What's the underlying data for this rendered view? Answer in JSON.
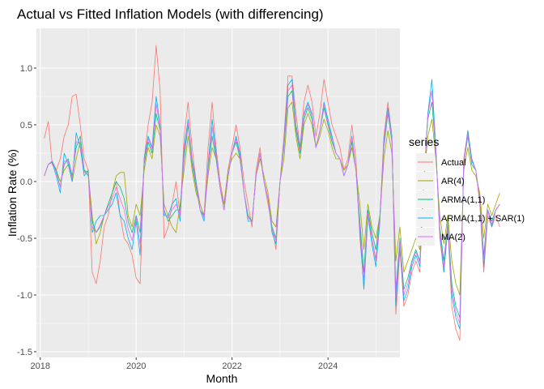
{
  "chart_data": {
    "type": "line",
    "title": "Actual vs Fitted Inflation Models (with differencing)",
    "xlabel": "Month",
    "ylabel": "Inflation Rate (%)",
    "xlim": [
      2017.92,
      2025.5
    ],
    "ylim": [
      -1.55,
      1.35
    ],
    "x_ticks": [
      2018,
      2020,
      2022,
      2024
    ],
    "y_ticks": [
      -1.5,
      -1.0,
      -0.5,
      0.0,
      0.5,
      1.0
    ],
    "y_tick_labels": [
      "-1.5",
      "-1.0",
      "-0.5",
      "0.0",
      "0.5",
      "1.0"
    ],
    "legend_title": "series",
    "legend_position": "right",
    "grid": true,
    "series": [
      {
        "name": "Actual",
        "color": "#F8766D",
        "x_start": 2018.083,
        "x_step": 0.08333,
        "values": [
          0.38,
          0.53,
          0.15,
          0.1,
          0.2,
          0.4,
          0.5,
          0.75,
          0.77,
          0.5,
          0.2,
          0.1,
          -0.8,
          -0.9,
          -0.7,
          -0.4,
          -0.3,
          -0.1,
          0.0,
          -0.3,
          -0.5,
          -0.55,
          -0.65,
          -0.85,
          -0.9,
          0.2,
          0.5,
          0.7,
          1.2,
          0.8,
          -0.5,
          -0.4,
          -0.2,
          0.0,
          -0.3,
          0.4,
          0.7,
          0.3,
          0.0,
          -0.2,
          -0.3,
          0.3,
          0.7,
          0.3,
          0.0,
          -0.2,
          0.1,
          0.3,
          0.5,
          0.3,
          0.0,
          -0.2,
          -0.4,
          0.1,
          0.3,
          0.0,
          -0.2,
          -0.4,
          -0.6,
          0.0,
          0.4,
          0.93,
          0.93,
          0.6,
          0.3,
          0.7,
          0.85,
          0.7,
          0.4,
          0.6,
          0.9,
          0.7,
          0.5,
          0.4,
          0.3,
          0.1,
          0.2,
          0.5,
          0.2,
          -0.5,
          -0.9,
          -0.3,
          -0.5,
          -0.7,
          -0.3,
          0.4,
          0.7,
          0.4,
          -1.17,
          -0.6,
          -1.1,
          -1.0,
          -0.8,
          -0.7,
          -0.8,
          0.0,
          0.6,
          0.8,
          0.3,
          -0.5,
          -0.8,
          -0.4,
          -1.1,
          -1.3,
          -1.4,
          0.2,
          0.45,
          0.2,
          0.1,
          -0.2,
          -0.8,
          -0.3,
          -0.4,
          -0.3,
          -0.4
        ]
      },
      {
        "name": "AR(4)",
        "color": "#A3A500",
        "x_start": 2018.083,
        "x_step": 0.08333,
        "values": [
          0.05,
          0.15,
          0.18,
          0.1,
          0.0,
          0.1,
          0.15,
          0.0,
          0.2,
          0.35,
          0.1,
          0.08,
          -0.3,
          -0.55,
          -0.45,
          -0.3,
          -0.2,
          -0.1,
          0.05,
          0.08,
          0.08,
          -0.3,
          -0.4,
          -0.2,
          -0.3,
          0.1,
          0.3,
          0.2,
          0.5,
          0.4,
          -0.2,
          -0.3,
          -0.4,
          -0.45,
          -0.2,
          0.1,
          0.4,
          0.1,
          -0.1,
          -0.2,
          -0.3,
          0.05,
          0.3,
          0.2,
          -0.05,
          -0.2,
          0.1,
          0.2,
          0.25,
          0.2,
          -0.1,
          -0.3,
          -0.35,
          0.05,
          0.2,
          0.05,
          -0.1,
          -0.35,
          -0.4,
          0.0,
          0.2,
          0.65,
          0.7,
          0.4,
          0.2,
          0.5,
          0.6,
          0.5,
          0.3,
          0.4,
          0.55,
          0.45,
          0.3,
          0.2,
          0.2,
          0.1,
          0.15,
          0.3,
          0.1,
          -0.2,
          -0.6,
          -0.2,
          -0.4,
          -0.5,
          -0.3,
          0.2,
          0.45,
          0.25,
          -0.7,
          -0.4,
          -0.8,
          -0.7,
          -0.6,
          -0.5,
          -0.6,
          0.0,
          0.4,
          0.55,
          0.2,
          -0.3,
          -0.55,
          -0.3,
          -0.7,
          -0.9,
          -1.0,
          0.1,
          0.3,
          0.1,
          0.05,
          -0.1,
          -0.5,
          -0.2,
          -0.3,
          -0.2,
          -0.1
        ]
      },
      {
        "name": "ARMA(1,1)",
        "color": "#00BF7D",
        "x_start": 2018.083,
        "x_step": 0.08333,
        "values": [
          0.05,
          0.15,
          0.18,
          0.1,
          -0.05,
          0.15,
          0.2,
          0.05,
          0.3,
          0.4,
          0.1,
          0.05,
          -0.35,
          -0.45,
          -0.4,
          -0.3,
          -0.2,
          -0.1,
          0.0,
          -0.05,
          -0.15,
          -0.35,
          -0.45,
          -0.3,
          -0.45,
          0.15,
          0.35,
          0.25,
          0.6,
          0.45,
          -0.25,
          -0.35,
          -0.3,
          -0.25,
          -0.25,
          0.2,
          0.5,
          0.15,
          -0.05,
          -0.25,
          -0.3,
          0.1,
          0.4,
          0.2,
          -0.05,
          -0.25,
          0.05,
          0.25,
          0.35,
          0.2,
          -0.1,
          -0.3,
          -0.35,
          0.05,
          0.25,
          0.0,
          -0.15,
          -0.4,
          -0.5,
          0.0,
          0.3,
          0.75,
          0.8,
          0.45,
          0.25,
          0.55,
          0.65,
          0.55,
          0.3,
          0.45,
          0.65,
          0.5,
          0.35,
          0.25,
          0.2,
          0.05,
          0.15,
          0.35,
          0.1,
          -0.35,
          -0.8,
          -0.25,
          -0.45,
          -0.6,
          -0.3,
          0.3,
          0.6,
          0.35,
          -0.95,
          -0.5,
          -0.95,
          -0.85,
          -0.7,
          -0.6,
          -0.7,
          0.0,
          0.55,
          0.7,
          0.25,
          -0.4,
          -0.7,
          -0.35,
          -0.9,
          -1.1,
          -1.2,
          0.15,
          0.4,
          0.15,
          0.1,
          -0.15,
          -0.65,
          -0.25,
          -0.35,
          -0.25,
          -0.2
        ]
      },
      {
        "name": "ARMA(1,1) + SAR(1)",
        "color": "#00B0F6",
        "x_start": 2018.083,
        "x_step": 0.08333,
        "values": [
          0.05,
          0.15,
          0.17,
          0.05,
          -0.1,
          0.25,
          0.15,
          0.0,
          0.43,
          0.3,
          0.05,
          0.1,
          -0.45,
          -0.35,
          -0.3,
          -0.3,
          -0.25,
          -0.2,
          -0.1,
          -0.3,
          -0.35,
          -0.5,
          -0.6,
          -0.35,
          -0.65,
          0.2,
          0.4,
          0.3,
          0.75,
          0.5,
          -0.3,
          -0.3,
          -0.2,
          -0.15,
          -0.35,
          0.3,
          0.55,
          0.2,
          0.0,
          -0.25,
          -0.35,
          0.15,
          0.55,
          0.25,
          -0.05,
          -0.25,
          0.05,
          0.25,
          0.4,
          0.25,
          -0.1,
          -0.35,
          -0.35,
          0.05,
          0.25,
          0.0,
          -0.15,
          -0.45,
          -0.55,
          0.0,
          0.35,
          0.85,
          0.9,
          0.5,
          0.3,
          0.6,
          0.7,
          0.6,
          0.3,
          0.45,
          0.7,
          0.55,
          0.4,
          0.25,
          0.2,
          0.05,
          0.15,
          0.4,
          0.1,
          -0.45,
          -0.95,
          -0.3,
          -0.55,
          -0.75,
          -0.35,
          0.35,
          0.65,
          0.4,
          -1.1,
          -0.55,
          -1.05,
          -0.95,
          -0.75,
          -0.65,
          -0.75,
          0.0,
          0.6,
          0.9,
          0.3,
          -0.45,
          -0.8,
          -0.4,
          -1.0,
          -1.2,
          -1.3,
          0.15,
          0.45,
          0.2,
          0.1,
          -0.15,
          -0.75,
          -0.25,
          -0.4,
          -0.25,
          -0.2
        ]
      },
      {
        "name": "MA(2)",
        "color": "#E76BF3",
        "x_start": 2018.083,
        "x_step": 0.08333,
        "values": [
          0.05,
          0.15,
          0.18,
          0.08,
          -0.05,
          0.18,
          0.18,
          0.03,
          0.35,
          0.35,
          0.08,
          0.07,
          -0.4,
          -0.45,
          -0.38,
          -0.3,
          -0.22,
          -0.15,
          -0.05,
          -0.15,
          -0.25,
          -0.42,
          -0.52,
          -0.32,
          -0.55,
          0.18,
          0.38,
          0.28,
          0.68,
          0.48,
          -0.28,
          -0.32,
          -0.25,
          -0.2,
          -0.3,
          0.25,
          0.52,
          0.18,
          -0.02,
          -0.25,
          -0.32,
          0.12,
          0.48,
          0.22,
          -0.05,
          -0.25,
          0.05,
          0.25,
          0.38,
          0.22,
          -0.1,
          -0.32,
          -0.35,
          0.05,
          0.25,
          0.0,
          -0.15,
          -0.42,
          -0.52,
          0.0,
          0.32,
          0.8,
          0.85,
          0.48,
          0.28,
          0.58,
          0.68,
          0.58,
          0.3,
          0.45,
          0.68,
          0.52,
          0.38,
          0.25,
          0.2,
          0.05,
          0.15,
          0.38,
          0.1,
          -0.4,
          -0.88,
          -0.28,
          -0.5,
          -0.68,
          -0.32,
          0.32,
          0.62,
          0.38,
          -1.02,
          -0.52,
          -1.0,
          -0.9,
          -0.72,
          -0.62,
          -0.72,
          0.0,
          0.58,
          0.8,
          0.28,
          -0.42,
          -0.75,
          -0.38,
          -0.95,
          -1.15,
          -1.25,
          0.15,
          0.42,
          0.18,
          0.1,
          -0.15,
          -0.7,
          -0.25,
          -0.38,
          -0.25,
          -0.2
        ]
      }
    ]
  }
}
